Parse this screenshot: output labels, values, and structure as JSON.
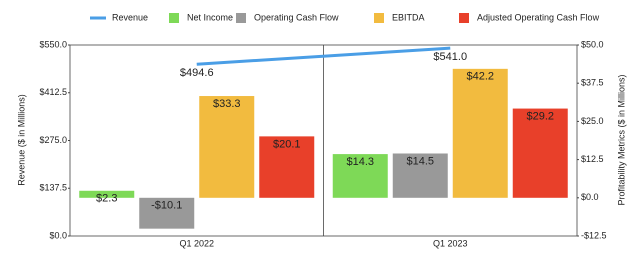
{
  "chart_data": {
    "type": "bar",
    "categories": [
      "Q1 2022",
      "Q1 2023"
    ],
    "ylabel": "Revenue ($ in Millions)",
    "y2label": "Profitability Metrics ($ in Millions)",
    "ylim": [
      0,
      550
    ],
    "yticks": [
      {
        "value": 0,
        "label": "$0.0"
      },
      {
        "value": 137.5,
        "label": "$137.5"
      },
      {
        "value": 275,
        "label": "$275.0"
      },
      {
        "value": 412.5,
        "label": "$412.5"
      },
      {
        "value": 550,
        "label": "$550.0"
      }
    ],
    "y2lim": [
      -12.5,
      50
    ],
    "y2ticks": [
      {
        "value": -12.5,
        "label": "-$12.5"
      },
      {
        "value": 0,
        "label": "$0.0"
      },
      {
        "value": 12.5,
        "label": "$12.5"
      },
      {
        "value": 25,
        "label": "$25.0"
      },
      {
        "value": 37.5,
        "label": "$37.5"
      },
      {
        "value": 50,
        "label": "$50.0"
      }
    ],
    "legend": "top",
    "series": [
      {
        "name": "Revenue",
        "type": "line",
        "color": "#4a9ee6",
        "values": [
          494.6,
          541.0
        ],
        "value_labels": [
          "$494.6",
          "$541.0"
        ]
      },
      {
        "name": "Net Income",
        "axis": "y2",
        "color": "#7ed957",
        "values": [
          2.3,
          14.3
        ],
        "value_labels": [
          "$2.3",
          "$14.3"
        ]
      },
      {
        "name": "Operating Cash Flow",
        "axis": "y2",
        "color": "#999999",
        "values": [
          -10.1,
          14.5
        ],
        "value_labels": [
          "-$10.1",
          "$14.5"
        ]
      },
      {
        "name": "EBITDA",
        "axis": "y2",
        "color": "#f2bb3f",
        "values": [
          33.3,
          42.2
        ],
        "value_labels": [
          "$33.3",
          "$42.2"
        ]
      },
      {
        "name": "Adjusted Operating Cash Flow",
        "axis": "y2",
        "color": "#e8402a",
        "values": [
          20.1,
          29.2
        ],
        "value_labels": [
          "$20.1",
          "$29.2"
        ]
      }
    ]
  }
}
